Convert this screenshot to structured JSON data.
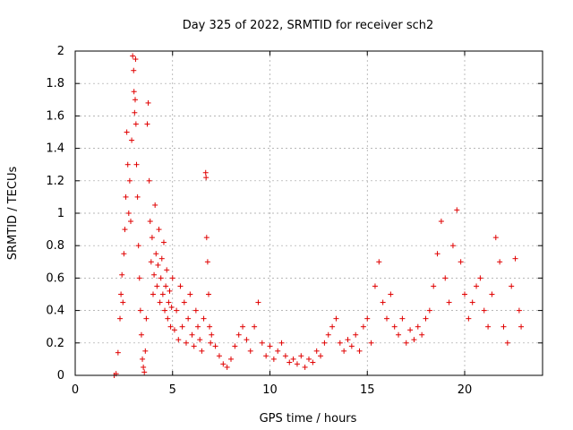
{
  "chart_data": {
    "type": "scatter",
    "title": "Day 325 of 2022, SRMTID for receiver sch2",
    "xlabel": "GPS time / hours",
    "ylabel": "SRMTID / TECUs",
    "xlim": [
      0,
      24
    ],
    "ylim": [
      0,
      2
    ],
    "xticks": [
      0,
      5,
      10,
      15,
      20
    ],
    "yticks": [
      0,
      0.2,
      0.4,
      0.6,
      0.8,
      1,
      1.2,
      1.4,
      1.6,
      1.8,
      2
    ],
    "grid": true,
    "marker": "+",
    "color": "#e00000",
    "series": [
      {
        "name": "SRMTID",
        "points": [
          [
            2.0,
            0.0
          ],
          [
            2.1,
            0.01
          ],
          [
            2.2,
            0.14
          ],
          [
            2.3,
            0.35
          ],
          [
            2.35,
            0.5
          ],
          [
            2.4,
            0.62
          ],
          [
            2.45,
            0.45
          ],
          [
            2.5,
            0.75
          ],
          [
            2.55,
            0.9
          ],
          [
            2.6,
            1.1
          ],
          [
            2.65,
            1.5
          ],
          [
            2.7,
            1.3
          ],
          [
            2.75,
            1.0
          ],
          [
            2.8,
            1.2
          ],
          [
            2.85,
            0.95
          ],
          [
            2.9,
            1.45
          ],
          [
            2.95,
            1.97
          ],
          [
            3.0,
            1.88
          ],
          [
            3.02,
            1.75
          ],
          [
            3.05,
            1.62
          ],
          [
            3.08,
            1.7
          ],
          [
            3.1,
            1.95
          ],
          [
            3.12,
            1.55
          ],
          [
            3.15,
            1.3
          ],
          [
            3.2,
            1.1
          ],
          [
            3.25,
            0.8
          ],
          [
            3.3,
            0.6
          ],
          [
            3.35,
            0.4
          ],
          [
            3.4,
            0.25
          ],
          [
            3.45,
            0.1
          ],
          [
            3.5,
            0.05
          ],
          [
            3.55,
            0.02
          ],
          [
            3.6,
            0.15
          ],
          [
            3.65,
            0.35
          ],
          [
            3.7,
            1.55
          ],
          [
            3.75,
            1.68
          ],
          [
            3.8,
            1.2
          ],
          [
            3.85,
            0.95
          ],
          [
            3.9,
            0.7
          ],
          [
            3.95,
            0.85
          ],
          [
            4.0,
            0.5
          ],
          [
            4.05,
            0.62
          ],
          [
            4.1,
            1.05
          ],
          [
            4.15,
            0.75
          ],
          [
            4.2,
            0.55
          ],
          [
            4.25,
            0.68
          ],
          [
            4.3,
            0.9
          ],
          [
            4.35,
            0.45
          ],
          [
            4.4,
            0.6
          ],
          [
            4.45,
            0.72
          ],
          [
            4.5,
            0.5
          ],
          [
            4.55,
            0.82
          ],
          [
            4.6,
            0.4
          ],
          [
            4.65,
            0.55
          ],
          [
            4.7,
            0.65
          ],
          [
            4.75,
            0.35
          ],
          [
            4.8,
            0.45
          ],
          [
            4.85,
            0.52
          ],
          [
            4.9,
            0.3
          ],
          [
            4.95,
            0.42
          ],
          [
            5.0,
            0.6
          ],
          [
            5.1,
            0.28
          ],
          [
            5.2,
            0.4
          ],
          [
            5.3,
            0.22
          ],
          [
            5.4,
            0.55
          ],
          [
            5.5,
            0.3
          ],
          [
            5.6,
            0.45
          ],
          [
            5.7,
            0.2
          ],
          [
            5.8,
            0.35
          ],
          [
            5.9,
            0.5
          ],
          [
            6.0,
            0.25
          ],
          [
            6.1,
            0.18
          ],
          [
            6.2,
            0.4
          ],
          [
            6.3,
            0.3
          ],
          [
            6.4,
            0.22
          ],
          [
            6.5,
            0.15
          ],
          [
            6.6,
            0.35
          ],
          [
            6.7,
            1.25
          ],
          [
            6.72,
            1.22
          ],
          [
            6.75,
            0.85
          ],
          [
            6.8,
            0.7
          ],
          [
            6.85,
            0.5
          ],
          [
            6.9,
            0.3
          ],
          [
            6.95,
            0.2
          ],
          [
            7.0,
            0.25
          ],
          [
            7.2,
            0.18
          ],
          [
            7.4,
            0.12
          ],
          [
            7.6,
            0.07
          ],
          [
            7.8,
            0.05
          ],
          [
            8.0,
            0.1
          ],
          [
            8.2,
            0.18
          ],
          [
            8.4,
            0.25
          ],
          [
            8.6,
            0.3
          ],
          [
            8.8,
            0.22
          ],
          [
            9.0,
            0.15
          ],
          [
            9.2,
            0.3
          ],
          [
            9.4,
            0.45
          ],
          [
            9.6,
            0.2
          ],
          [
            9.8,
            0.12
          ],
          [
            10.0,
            0.18
          ],
          [
            10.2,
            0.1
          ],
          [
            10.4,
            0.15
          ],
          [
            10.6,
            0.2
          ],
          [
            10.8,
            0.12
          ],
          [
            11.0,
            0.08
          ],
          [
            11.2,
            0.1
          ],
          [
            11.4,
            0.07
          ],
          [
            11.6,
            0.12
          ],
          [
            11.8,
            0.05
          ],
          [
            12.0,
            0.1
          ],
          [
            12.2,
            0.08
          ],
          [
            12.4,
            0.15
          ],
          [
            12.6,
            0.12
          ],
          [
            12.8,
            0.2
          ],
          [
            13.0,
            0.25
          ],
          [
            13.2,
            0.3
          ],
          [
            13.4,
            0.35
          ],
          [
            13.6,
            0.2
          ],
          [
            13.8,
            0.15
          ],
          [
            14.0,
            0.22
          ],
          [
            14.2,
            0.18
          ],
          [
            14.4,
            0.25
          ],
          [
            14.6,
            0.15
          ],
          [
            14.8,
            0.3
          ],
          [
            15.0,
            0.35
          ],
          [
            15.2,
            0.2
          ],
          [
            15.4,
            0.55
          ],
          [
            15.6,
            0.7
          ],
          [
            15.8,
            0.45
          ],
          [
            16.0,
            0.35
          ],
          [
            16.2,
            0.5
          ],
          [
            16.4,
            0.3
          ],
          [
            16.6,
            0.25
          ],
          [
            16.8,
            0.35
          ],
          [
            17.0,
            0.2
          ],
          [
            17.2,
            0.28
          ],
          [
            17.4,
            0.22
          ],
          [
            17.6,
            0.3
          ],
          [
            17.8,
            0.25
          ],
          [
            18.0,
            0.35
          ],
          [
            18.2,
            0.4
          ],
          [
            18.4,
            0.55
          ],
          [
            18.6,
            0.75
          ],
          [
            18.8,
            0.95
          ],
          [
            19.0,
            0.6
          ],
          [
            19.2,
            0.45
          ],
          [
            19.4,
            0.8
          ],
          [
            19.6,
            1.02
          ],
          [
            19.8,
            0.7
          ],
          [
            20.0,
            0.5
          ],
          [
            20.2,
            0.35
          ],
          [
            20.4,
            0.45
          ],
          [
            20.6,
            0.55
          ],
          [
            20.8,
            0.6
          ],
          [
            21.0,
            0.4
          ],
          [
            21.2,
            0.3
          ],
          [
            21.4,
            0.5
          ],
          [
            21.6,
            0.85
          ],
          [
            21.8,
            0.7
          ],
          [
            22.0,
            0.3
          ],
          [
            22.2,
            0.2
          ],
          [
            22.4,
            0.55
          ],
          [
            22.6,
            0.72
          ],
          [
            22.8,
            0.4
          ],
          [
            22.9,
            0.3
          ]
        ]
      }
    ]
  }
}
